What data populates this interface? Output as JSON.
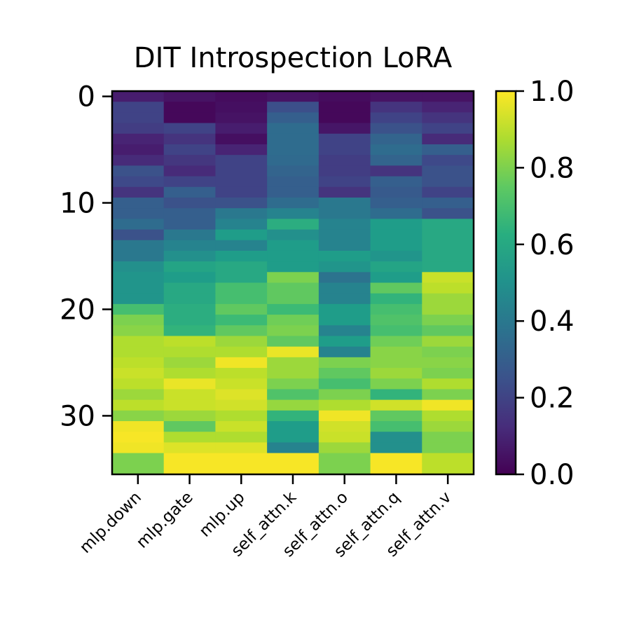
{
  "chart_data": {
    "type": "heatmap",
    "title": "DIT Introspection LoRA",
    "xlabel": "",
    "ylabel": "",
    "x_categories": [
      "mlp.down",
      "mlp.gate",
      "mlp.up",
      "self_attn.k",
      "self_attn.o",
      "self_attn.q",
      "self_attn.v"
    ],
    "y_ticks": [
      0,
      10,
      20,
      30
    ],
    "y_tick_labels": [
      "0",
      "10",
      "20",
      "30"
    ],
    "n_rows": 36,
    "colormap": "viridis",
    "vmin": 0.0,
    "vmax": 1.0,
    "colorbar_ticks": [
      0.0,
      0.2,
      0.4,
      0.6,
      0.8,
      1.0
    ],
    "colorbar_tick_labels": [
      "0.0",
      "0.2",
      "0.4",
      "0.6",
      "0.8",
      "1.0"
    ],
    "values": [
      [
        0.08,
        0.05,
        0.03,
        0.05,
        0.03,
        0.05,
        0.05
      ],
      [
        0.2,
        0.02,
        0.04,
        0.24,
        0.02,
        0.15,
        0.1
      ],
      [
        0.2,
        0.02,
        0.05,
        0.3,
        0.02,
        0.2,
        0.15
      ],
      [
        0.18,
        0.2,
        0.08,
        0.35,
        0.06,
        0.25,
        0.2
      ],
      [
        0.1,
        0.15,
        0.04,
        0.35,
        0.2,
        0.32,
        0.12
      ],
      [
        0.08,
        0.2,
        0.1,
        0.35,
        0.2,
        0.35,
        0.3
      ],
      [
        0.12,
        0.16,
        0.2,
        0.34,
        0.18,
        0.32,
        0.22
      ],
      [
        0.25,
        0.12,
        0.2,
        0.32,
        0.18,
        0.15,
        0.25
      ],
      [
        0.22,
        0.2,
        0.2,
        0.3,
        0.2,
        0.3,
        0.25
      ],
      [
        0.15,
        0.3,
        0.2,
        0.3,
        0.15,
        0.28,
        0.2
      ],
      [
        0.3,
        0.25,
        0.25,
        0.35,
        0.4,
        0.3,
        0.3
      ],
      [
        0.3,
        0.3,
        0.4,
        0.45,
        0.4,
        0.35,
        0.25
      ],
      [
        0.35,
        0.3,
        0.45,
        0.62,
        0.45,
        0.55,
        0.6
      ],
      [
        0.25,
        0.4,
        0.55,
        0.5,
        0.45,
        0.55,
        0.6
      ],
      [
        0.4,
        0.45,
        0.45,
        0.55,
        0.45,
        0.55,
        0.6
      ],
      [
        0.4,
        0.5,
        0.55,
        0.55,
        0.55,
        0.52,
        0.6
      ],
      [
        0.5,
        0.58,
        0.6,
        0.55,
        0.52,
        0.58,
        0.6
      ],
      [
        0.52,
        0.55,
        0.6,
        0.8,
        0.38,
        0.55,
        0.92
      ],
      [
        0.52,
        0.6,
        0.7,
        0.75,
        0.45,
        0.75,
        0.9
      ],
      [
        0.52,
        0.6,
        0.7,
        0.75,
        0.45,
        0.65,
        0.85
      ],
      [
        0.7,
        0.62,
        0.75,
        0.68,
        0.55,
        0.7,
        0.85
      ],
      [
        0.8,
        0.62,
        0.68,
        0.78,
        0.55,
        0.72,
        0.8
      ],
      [
        0.82,
        0.65,
        0.75,
        0.8,
        0.45,
        0.7,
        0.75
      ],
      [
        0.88,
        0.9,
        0.85,
        0.75,
        0.55,
        0.78,
        0.85
      ],
      [
        0.88,
        0.88,
        0.88,
        0.97,
        0.45,
        0.82,
        0.8
      ],
      [
        0.9,
        0.85,
        0.98,
        0.85,
        0.8,
        0.82,
        0.82
      ],
      [
        0.92,
        0.88,
        0.9,
        0.85,
        0.75,
        0.85,
        0.8
      ],
      [
        0.9,
        0.97,
        0.92,
        0.8,
        0.7,
        0.8,
        0.88
      ],
      [
        0.85,
        0.92,
        0.95,
        0.72,
        0.8,
        0.65,
        0.8
      ],
      [
        0.9,
        0.92,
        0.93,
        0.84,
        0.88,
        0.93,
        0.98
      ],
      [
        0.82,
        0.85,
        0.88,
        0.65,
        0.98,
        0.75,
        0.88
      ],
      [
        0.98,
        0.75,
        0.92,
        0.55,
        0.93,
        0.7,
        0.85
      ],
      [
        0.99,
        0.88,
        0.88,
        0.55,
        0.92,
        0.5,
        0.8
      ],
      [
        0.98,
        0.95,
        0.95,
        0.45,
        0.85,
        0.5,
        0.8
      ],
      [
        0.8,
        0.99,
        0.99,
        0.99,
        0.8,
        0.99,
        0.9
      ],
      [
        0.8,
        0.99,
        0.99,
        0.99,
        0.8,
        0.99,
        0.9
      ]
    ]
  }
}
